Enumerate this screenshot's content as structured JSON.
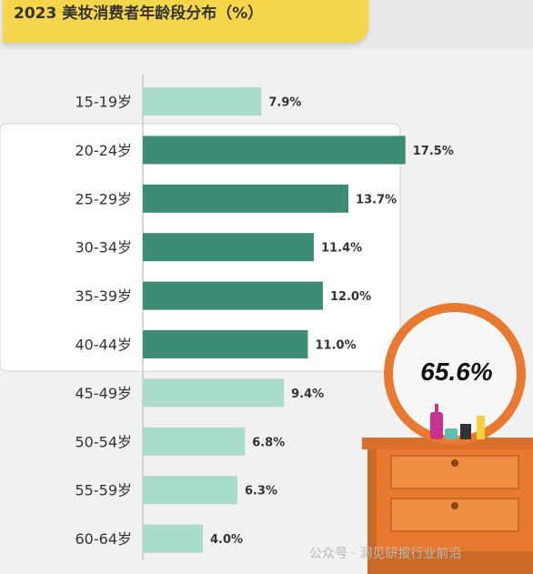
{
  "chart_data": {
    "type": "bar",
    "orientation": "horizontal",
    "title": "2023 美妆消费者年龄段分布（%）",
    "categories": [
      "15-19岁",
      "20-24岁",
      "25-29岁",
      "30-34岁",
      "35-39岁",
      "40-44岁",
      "45-49岁",
      "50-54岁",
      "55-59岁",
      "60-64岁"
    ],
    "values": [
      7.9,
      17.5,
      13.7,
      11.4,
      12.0,
      11.0,
      9.4,
      6.8,
      6.3,
      4.0
    ],
    "value_labels": [
      "7.9%",
      "17.5%",
      "13.7%",
      "11.4%",
      "12.0%",
      "11.0%",
      "9.4%",
      "6.8%",
      "6.3%",
      "4.0%"
    ],
    "highlight_range": [
      "20-24岁",
      "40-44岁"
    ],
    "highlight_total": "65.6%",
    "xlim": [
      0,
      20
    ],
    "grid": false,
    "colors": {
      "highlight": "#3d8c76",
      "normal": "#a9dccc",
      "panel": "#ffffff",
      "background": "#f1f1f1",
      "title_box": "#f5d54a",
      "dresser": "#e77930"
    }
  },
  "watermark": "公众号 · 洞见研报行业前沿"
}
